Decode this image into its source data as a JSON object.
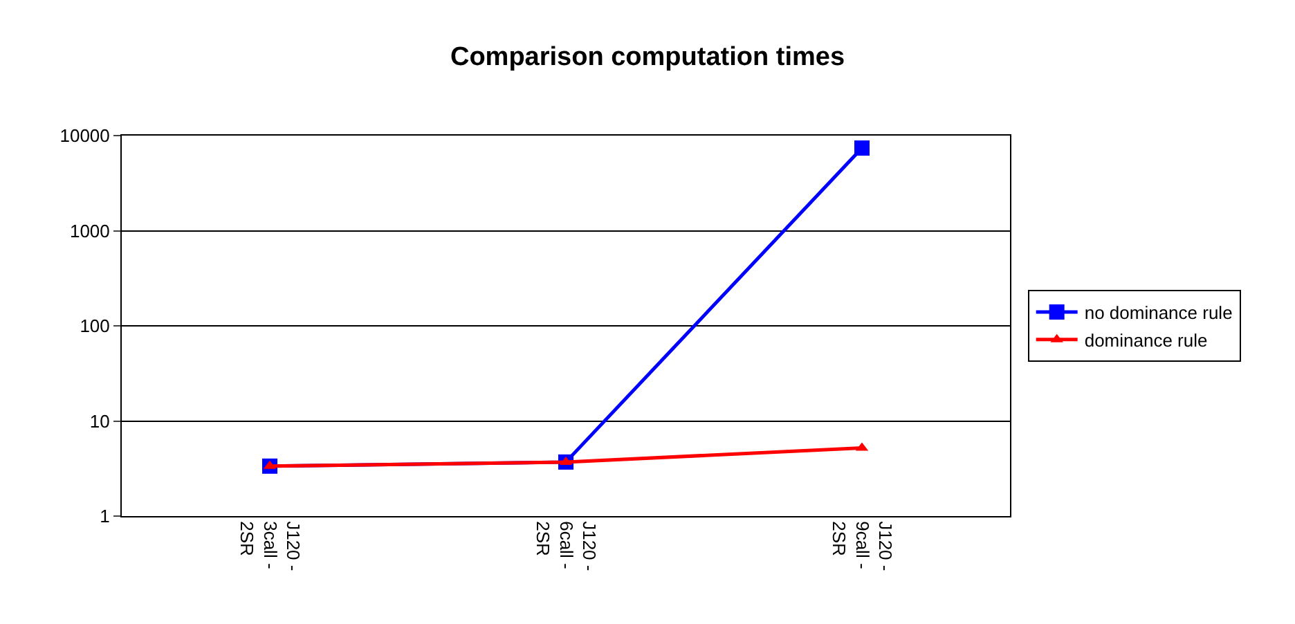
{
  "chart_data": {
    "type": "line",
    "title": "Comparison computation times",
    "categories": [
      "J120 - 3call - 2SR",
      "J120 - 6call - 2SR",
      "J120 - 9call - 2SR"
    ],
    "series": [
      {
        "name": "no dominance rule",
        "color": "#0000ff",
        "marker": "square",
        "values": [
          3.35,
          3.7,
          7400
        ]
      },
      {
        "name": "dominance rule",
        "color": "#ff0000",
        "marker": "triangle",
        "values": [
          3.35,
          3.7,
          5.2
        ]
      }
    ],
    "log": true,
    "ylim": [
      1,
      10000
    ],
    "yticks": [
      1,
      10,
      100,
      1000,
      10000
    ],
    "grid": "y",
    "legend": "right"
  }
}
